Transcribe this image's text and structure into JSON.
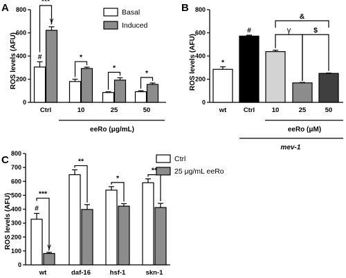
{
  "chart_data": [
    {
      "panel": "A",
      "type": "bar",
      "ylabel": "ROS levels (AFU)",
      "ylim": [
        0,
        800
      ],
      "yticks": [
        "0",
        "200",
        "400",
        "600",
        "800"
      ],
      "categories": [
        "Ctrl",
        "10",
        "25",
        "50"
      ],
      "group_label": "eeRo (μg/mL)",
      "legend": {
        "position": "top-right",
        "entries": [
          "Basal",
          "Induced"
        ]
      },
      "series": [
        {
          "name": "Basal",
          "color": "#ffffff",
          "values": [
            305,
            180,
            85,
            92
          ],
          "errors": [
            45,
            20,
            6,
            8
          ]
        },
        {
          "name": "Induced",
          "color": "#8c8c8c",
          "values": [
            622,
            292,
            192,
            155
          ],
          "errors": [
            30,
            12,
            20,
            12
          ]
        }
      ],
      "annotations": [
        {
          "text": "***",
          "between": [
            "Ctrl-Basal",
            "Ctrl-Induced"
          ]
        },
        {
          "text": "#",
          "on": "Ctrl-Basal"
        },
        {
          "text": "γ",
          "on": "Ctrl-Induced"
        },
        {
          "text": "*",
          "between": [
            "10-Basal",
            "10-Induced"
          ]
        },
        {
          "text": "*",
          "between": [
            "25-Basal",
            "25-Induced"
          ]
        },
        {
          "text": "*",
          "between": [
            "50-Basal",
            "50-Induced"
          ]
        }
      ]
    },
    {
      "panel": "B",
      "type": "bar",
      "ylabel": "ROS levels (AFU)",
      "ylim": [
        0,
        800
      ],
      "yticks": [
        "0",
        "200",
        "400",
        "600",
        "800"
      ],
      "categories": [
        "wt",
        "Ctrl",
        "10",
        "25",
        "50"
      ],
      "group_label": "eeRo (μM)",
      "strain_label": "mev-1",
      "values": [
        285,
        572,
        438,
        168,
        250
      ],
      "errors": [
        22,
        8,
        12,
        4,
        3
      ],
      "colors": [
        "#ffffff",
        "#000000",
        "#d3d3d3",
        "#8c8c8c",
        "#3f3f3f"
      ],
      "annotations": [
        {
          "text": "*",
          "on": "wt"
        },
        {
          "text": "#",
          "on": "Ctrl"
        },
        {
          "text": "&",
          "between": [
            "10",
            "50"
          ]
        },
        {
          "text": "γ",
          "between": [
            "10",
            "25"
          ]
        },
        {
          "text": "$",
          "between": [
            "25",
            "50"
          ]
        }
      ]
    },
    {
      "panel": "C",
      "type": "bar",
      "ylabel": "ROS levels (AFU)",
      "ylim": [
        0,
        800
      ],
      "yticks": [
        "0",
        "100",
        "200",
        "300",
        "400",
        "500",
        "600",
        "700",
        "800"
      ],
      "categories": [
        "wt",
        "daf-16",
        "hsf-1",
        "skn-1"
      ],
      "legend": {
        "position": "top",
        "entries": [
          "Ctrl",
          "25 μg/mL eeRo"
        ]
      },
      "series": [
        {
          "name": "Ctrl",
          "color": "#ffffff",
          "values": [
            328,
            648,
            537,
            590
          ],
          "errors": [
            42,
            35,
            25,
            28
          ]
        },
        {
          "name": "25 μg/mL eeRo",
          "color": "#8c8c8c",
          "values": [
            82,
            398,
            422,
            412
          ],
          "errors": [
            8,
            35,
            18,
            30
          ]
        }
      ],
      "annotations": [
        {
          "text": "***",
          "between": [
            "wt-Ctrl",
            "wt-eeRo"
          ]
        },
        {
          "text": "#",
          "on": "wt-Ctrl"
        },
        {
          "text": "γ",
          "on": "wt-eeRo"
        },
        {
          "text": "**",
          "between": [
            "daf-16-Ctrl",
            "daf-16-eeRo"
          ]
        },
        {
          "text": "*",
          "between": [
            "hsf-1-Ctrl",
            "hsf-1-eeRo"
          ]
        },
        {
          "text": "**",
          "between": [
            "skn-1-Ctrl",
            "skn-1-eeRo"
          ]
        }
      ]
    }
  ]
}
